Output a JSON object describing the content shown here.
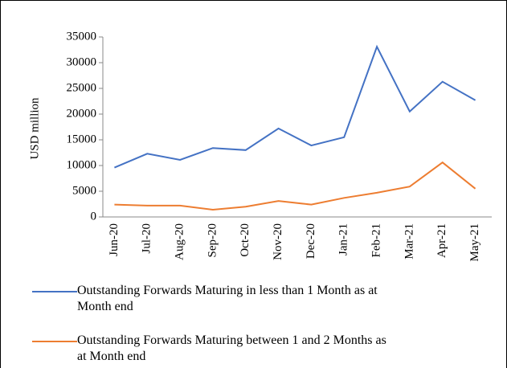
{
  "chart_data": {
    "type": "line",
    "y_label": "USD million",
    "categories": [
      "Jun-20",
      "Jul-20",
      "Aug-20",
      "Sep-20",
      "Oct-20",
      "Nov-20",
      "Dec-20",
      "Jan-21",
      "Feb-21",
      "Mar-21",
      "Apr-21",
      "May-21"
    ],
    "series": [
      {
        "name": "Outstanding Forwards Maturing in less than 1 Month as at Month end",
        "color": "#4472c4",
        "values": [
          9600,
          12300,
          11100,
          13400,
          13000,
          17200,
          13900,
          15500,
          33100,
          20500,
          26300,
          22700
        ]
      },
      {
        "name": "Outstanding Forwards Maturing between 1 and 2 Months as at Month end",
        "color": "#ed7d31",
        "values": [
          2400,
          2200,
          2200,
          1400,
          2000,
          3100,
          2400,
          3700,
          4700,
          5900,
          10600,
          5500
        ]
      }
    ],
    "ylim": [
      0,
      35000
    ],
    "yticks": [
      0,
      5000,
      10000,
      15000,
      20000,
      25000,
      30000,
      35000
    ],
    "grid": false,
    "legend": "bottom"
  }
}
